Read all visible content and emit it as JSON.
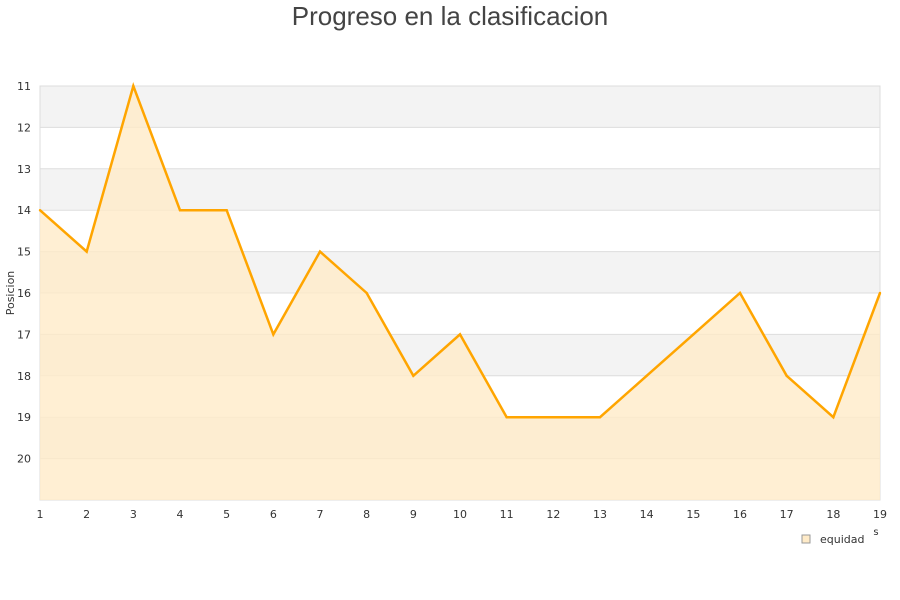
{
  "chart_data": {
    "type": "area",
    "title": "Progreso en la clasificacion",
    "ylabel": "Posicion",
    "xlabel": "s",
    "x": [
      1,
      2,
      3,
      4,
      5,
      6,
      7,
      8,
      9,
      10,
      11,
      12,
      13,
      14,
      15,
      16,
      17,
      18,
      19
    ],
    "ylim": [
      11,
      21
    ],
    "y_inverted": true,
    "yticks": [
      11,
      12,
      13,
      14,
      15,
      16,
      17,
      18,
      19,
      20
    ],
    "series": [
      {
        "name": "equidad",
        "values": [
          14,
          15,
          11,
          14,
          14,
          17,
          15,
          16,
          18,
          17,
          19,
          19,
          19,
          18,
          17,
          16,
          18,
          19,
          16
        ],
        "color": "#FFA500",
        "fill": "#FFEBC8"
      }
    ],
    "legend": "bottom-right",
    "grid": true
  }
}
